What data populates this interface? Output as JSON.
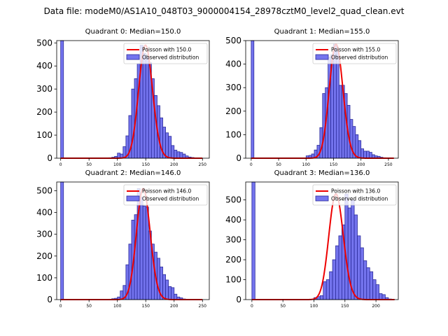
{
  "suptitle": "Data file: modeM0/AS1A10_048T03_9000004154_28978cztM0_level2_quad_clean.evt",
  "colors": {
    "bar_fill": "#7474ee",
    "bar_edge": "#2b2b9a",
    "poisson_line": "#ee0000",
    "legend_border": "#cccccc"
  },
  "legend": {
    "observed_label": "Observed distribution"
  },
  "chart_data": [
    {
      "type": "bar",
      "title": "Quadrant 0: Median=150.0",
      "poisson_label": "Poisson with 150.0",
      "median": 150,
      "xlim": [
        -7,
        262
      ],
      "ylim": [
        0,
        510
      ],
      "xticks": [
        0,
        50,
        100,
        150,
        200,
        250
      ],
      "yticks": [
        0,
        100,
        200,
        300,
        400,
        500
      ],
      "bin_width": 5,
      "bins": [
        0,
        5,
        10,
        15,
        20,
        25,
        30,
        35,
        40,
        45,
        50,
        55,
        60,
        65,
        70,
        75,
        80,
        85,
        90,
        95,
        100,
        105,
        110,
        115,
        120,
        125,
        130,
        135,
        140,
        145,
        150,
        155,
        160,
        165,
        170,
        175,
        180,
        185,
        190,
        195,
        200,
        205,
        210,
        215,
        220,
        225,
        230,
        235,
        240,
        245
      ],
      "values": [
        520,
        0,
        0,
        0,
        0,
        0,
        0,
        0,
        0,
        0,
        0,
        0,
        0,
        0,
        0,
        0,
        0,
        2,
        4,
        8,
        22,
        18,
        50,
        97,
        185,
        300,
        345,
        410,
        490,
        455,
        440,
        415,
        345,
        272,
        228,
        175,
        135,
        110,
        95,
        55,
        35,
        28,
        25,
        18,
        10,
        5,
        3,
        0,
        0,
        0
      ]
    },
    {
      "type": "bar",
      "title": "Quadrant 1: Median=155.0",
      "poisson_label": "Poisson with 155.0",
      "median": 155,
      "xlim": [
        -10,
        268
      ],
      "ylim": [
        0,
        500
      ],
      "xticks": [
        0,
        50,
        100,
        150,
        200,
        250
      ],
      "yticks": [
        0,
        100,
        200,
        300,
        400,
        500
      ],
      "bin_width": 5,
      "bins": [
        0,
        5,
        10,
        15,
        20,
        25,
        30,
        35,
        40,
        45,
        50,
        55,
        60,
        65,
        70,
        75,
        80,
        85,
        90,
        95,
        100,
        105,
        110,
        115,
        120,
        125,
        130,
        135,
        140,
        145,
        150,
        155,
        160,
        165,
        170,
        175,
        180,
        185,
        190,
        195,
        200,
        205,
        210,
        215,
        220,
        225,
        230,
        235,
        240,
        245,
        250,
        255
      ],
      "values": [
        510,
        0,
        0,
        0,
        0,
        0,
        0,
        0,
        0,
        0,
        0,
        0,
        0,
        0,
        0,
        0,
        0,
        0,
        0,
        0,
        10,
        12,
        18,
        35,
        55,
        130,
        275,
        300,
        430,
        440,
        485,
        455,
        310,
        310,
        275,
        225,
        165,
        135,
        100,
        75,
        40,
        30,
        30,
        25,
        15,
        10,
        8,
        4,
        2,
        0,
        0,
        0
      ]
    },
    {
      "type": "bar",
      "title": "Quadrant 2: Median=146.0",
      "poisson_label": "Poisson with 146.0",
      "median": 146,
      "xlim": [
        -7,
        262
      ],
      "ylim": [
        0,
        540
      ],
      "xticks": [
        0,
        50,
        100,
        150,
        200,
        250
      ],
      "yticks": [
        0,
        100,
        200,
        300,
        400,
        500
      ],
      "bin_width": 5,
      "bins": [
        0,
        5,
        10,
        15,
        20,
        25,
        30,
        35,
        40,
        45,
        50,
        55,
        60,
        65,
        70,
        75,
        80,
        85,
        90,
        95,
        100,
        105,
        110,
        115,
        120,
        125,
        130,
        135,
        140,
        145,
        150,
        155,
        160,
        165,
        170,
        175,
        180,
        185,
        190,
        195,
        200,
        205,
        210,
        215,
        220,
        225,
        230,
        235,
        240,
        245
      ],
      "values": [
        550,
        0,
        0,
        0,
        0,
        0,
        0,
        0,
        0,
        0,
        0,
        0,
        0,
        0,
        0,
        0,
        0,
        2,
        4,
        6,
        12,
        40,
        65,
        160,
        255,
        365,
        390,
        510,
        470,
        430,
        425,
        315,
        255,
        218,
        190,
        150,
        115,
        90,
        60,
        55,
        25,
        12,
        8,
        3,
        1,
        0,
        0,
        0,
        0,
        0
      ]
    },
    {
      "type": "bar",
      "title": "Quadrant 3: Median=136.0",
      "poisson_label": "Poisson with 136.0",
      "median": 136,
      "xlim": [
        -10,
        236
      ],
      "ylim": [
        0,
        590
      ],
      "xticks": [
        0,
        50,
        100,
        150,
        200
      ],
      "yticks": [
        0,
        100,
        200,
        300,
        400,
        500
      ],
      "bin_width": 5,
      "bins": [
        0,
        5,
        10,
        15,
        20,
        25,
        30,
        35,
        40,
        45,
        50,
        55,
        60,
        65,
        70,
        75,
        80,
        85,
        90,
        95,
        100,
        105,
        110,
        115,
        120,
        125,
        130,
        135,
        140,
        145,
        150,
        155,
        160,
        165,
        170,
        175,
        180,
        185,
        190,
        195,
        200,
        205,
        210,
        215,
        220,
        225
      ],
      "values": [
        600,
        0,
        0,
        0,
        0,
        0,
        0,
        0,
        0,
        0,
        0,
        0,
        0,
        0,
        0,
        0,
        0,
        0,
        0,
        0,
        10,
        15,
        20,
        90,
        100,
        140,
        200,
        270,
        320,
        375,
        530,
        460,
        500,
        425,
        320,
        260,
        195,
        160,
        140,
        100,
        75,
        30,
        25,
        10,
        3,
        0
      ]
    }
  ]
}
